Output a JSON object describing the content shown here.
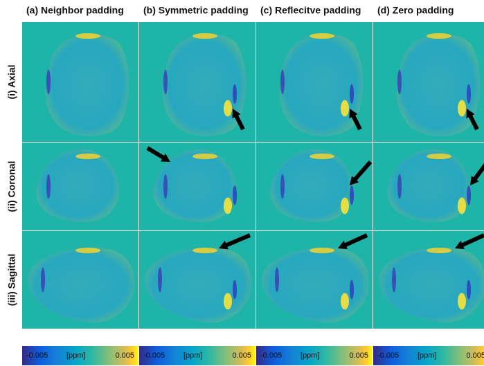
{
  "columns": [
    {
      "title": "(a) Neighbor padding"
    },
    {
      "title": "(b) Symmetric padding"
    },
    {
      "title": "(c) Reflecitve padding"
    },
    {
      "title": "(d) Zero padding"
    }
  ],
  "rows": [
    {
      "label": "(i) Axial"
    },
    {
      "label": "(ii) Coronal"
    },
    {
      "label": "(iii) Sagittal"
    }
  ],
  "colorbar": {
    "min_label": "-0.005",
    "unit_label": "[ppm]",
    "max_label": "0.005"
  }
}
